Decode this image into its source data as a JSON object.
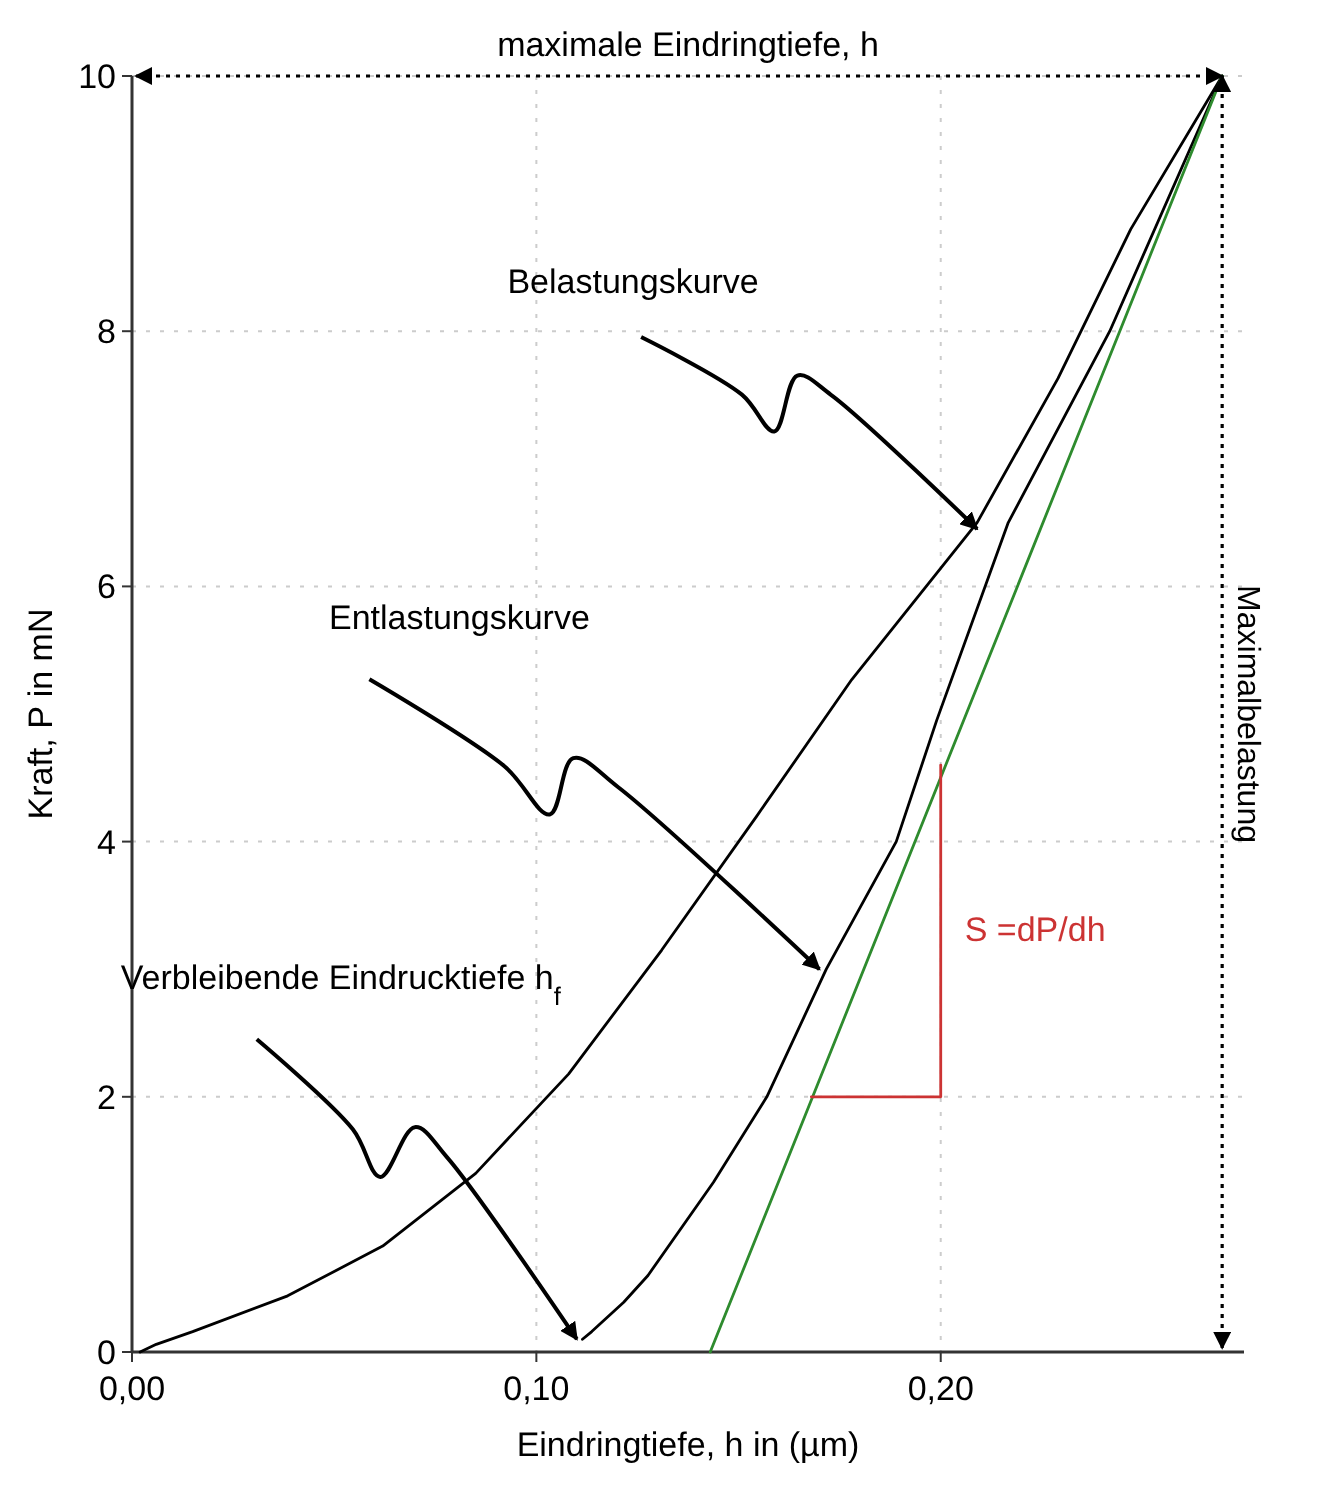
{
  "chart_data": {
    "type": "line",
    "xlabel": "Eindringtiefe, h in (µm)",
    "ylabel": "Kraft, P in mN",
    "xlim": [
      0,
      0.275
    ],
    "ylim": [
      0,
      10
    ],
    "xticks": [
      {
        "value": 0,
        "label": "0,00"
      },
      {
        "value": 0.1,
        "label": "0,10"
      },
      {
        "value": 0.2,
        "label": "0,20"
      }
    ],
    "yticks": [
      0,
      2,
      4,
      6,
      8,
      10
    ],
    "grid": true,
    "line_style": "solid",
    "marker": "none",
    "series": [
      {
        "color": "#000000",
        "x": [
          0.002,
          0.006,
          0.015,
          0.0385,
          0.062,
          0.085,
          0.108,
          0.131,
          0.1545,
          0.178,
          0.209,
          0.229,
          0.247,
          0.2696
        ],
        "values": [
          0,
          0.06,
          0.16,
          0.44,
          0.83,
          1.4,
          2.18,
          3.15,
          4.2,
          5.27,
          6.5,
          7.63,
          8.8,
          10
        ]
      },
      {
        "color": "#000000",
        "x": [
          0.2696,
          0.2418,
          0.2167,
          0.199,
          0.189,
          0.1717,
          0.157,
          0.1438,
          0.1276,
          0.1216,
          0.1137,
          0.1114
        ],
        "values": [
          10,
          8,
          6.5,
          4.95,
          4,
          3,
          2,
          1.33,
          0.6,
          0.39,
          0.16,
          0.1
        ]
      },
      {
        "color": "#2e8b2e",
        "x": [
          0.143,
          0.2696
        ],
        "values": [
          0,
          10
        ]
      },
      {
        "color": "#cc3333",
        "x": [
          0.168,
          0.2,
          0.2
        ],
        "values": [
          2,
          2,
          4.6
        ]
      }
    ],
    "ref_lines": [
      {
        "axis": "y",
        "value": 10,
        "label": "maximale Eindringtiefe, h",
        "line_style": "dotted",
        "color": "#000000"
      },
      {
        "axis": "x",
        "value": 0.2696,
        "label": "Maximalbelastung",
        "line_style": "dotted",
        "color": "#000000"
      }
    ],
    "annotations": [
      {
        "text": "Belastungskurve",
        "x": 0.209,
        "y": 6.45
      },
      {
        "text": "Entlastungskurve",
        "x": 0.17,
        "y": 3.0
      },
      {
        "text": "Verbleibende Eindrucktiefe h$_{f}$",
        "x": 0.11,
        "y": 0.1
      },
      {
        "text": "S =dP/dh",
        "x": 0.2,
        "y": 3.3
      }
    ]
  }
}
